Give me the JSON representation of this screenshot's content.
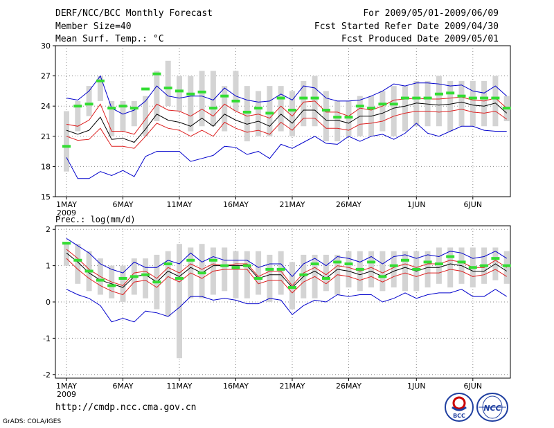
{
  "header": {
    "title": "DERF/NCC/BCC Monthly Forecast",
    "member_size": "Member Size=40",
    "variable": "Mean Surf. Temp.: °C",
    "for_range": "For 2009/05/01-2009/06/09",
    "fcst_started": "Fcst Started Refer Date 2009/04/30",
    "fcst_produced": "Fcst Produced Date 2009/05/01"
  },
  "precip_label": "Prec.: log(mm/d)",
  "footer": {
    "url": "http://cmdp.ncc.cma.gov.cn",
    "grads": "GrADS: COLA/IGES",
    "logo1": "BCC",
    "logo2": "NCC"
  },
  "colors": {
    "box": "#d4d4d4",
    "observed": "#33dd33",
    "mean": "#000000",
    "spread": "#dd2020",
    "envelope": "#0000cc",
    "grid": "#888888"
  },
  "chart_data": [
    {
      "type": "box-ensemble",
      "title": "Mean Surf. Temp.: °C",
      "x_ticks": [
        "1MAY",
        "6MAY",
        "11MAY",
        "16MAY",
        "21MAY",
        "26MAY",
        "1JUN",
        "6JUN"
      ],
      "x_tick_days": [
        1,
        6,
        11,
        16,
        21,
        26,
        32,
        37
      ],
      "year_label": "2009",
      "days": [
        1,
        2,
        3,
        4,
        5,
        6,
        7,
        8,
        9,
        10,
        11,
        12,
        13,
        14,
        15,
        16,
        17,
        18,
        19,
        20,
        21,
        22,
        23,
        24,
        25,
        26,
        27,
        28,
        29,
        30,
        31,
        32,
        33,
        34,
        35,
        36,
        37,
        38,
        39,
        40
      ],
      "ylim": [
        15,
        30
      ],
      "y_ticks": [
        15,
        18,
        21,
        24,
        27,
        30
      ],
      "box_low": [
        17.5,
        21.5,
        23.0,
        24.5,
        21.0,
        21.5,
        22.0,
        21.0,
        22.5,
        24.0,
        23.5,
        21.5,
        22.0,
        22.0,
        21.5,
        23.5,
        20.5,
        21.0,
        21.0,
        21.5,
        21.0,
        22.0,
        22.0,
        20.5,
        20.5,
        21.0,
        21.0,
        21.0,
        21.5,
        21.0,
        21.5,
        22.0,
        22.0,
        22.0,
        21.5,
        22.0,
        22.0,
        22.0,
        22.0,
        22.5
      ],
      "box_high": [
        23.5,
        24.5,
        26.0,
        27.0,
        24.5,
        24.5,
        24.5,
        25.0,
        27.5,
        28.5,
        27.0,
        27.0,
        27.5,
        27.5,
        26.0,
        27.5,
        26.0,
        25.5,
        26.0,
        26.0,
        25.5,
        26.5,
        27.0,
        25.5,
        24.5,
        24.5,
        25.0,
        25.0,
        25.5,
        26.0,
        26.0,
        26.5,
        26.5,
        27.0,
        26.5,
        26.5,
        26.5,
        26.5,
        27.0,
        25.0
      ],
      "observed": [
        20.0,
        24.0,
        24.2,
        26.5,
        23.8,
        24.0,
        23.8,
        25.7,
        27.2,
        25.8,
        25.5,
        25.2,
        25.4,
        23.8,
        25.0,
        24.5,
        23.4,
        23.8,
        23.3,
        24.8,
        23.6,
        24.8,
        24.8,
        23.6,
        22.9,
        22.9,
        24.0,
        23.8,
        24.2,
        24.2,
        24.8,
        24.8,
        24.8,
        25.2,
        25.3,
        25.0,
        24.8,
        24.8,
        24.8,
        23.8
      ],
      "series": [
        {
          "name": "max",
          "values": [
            24.8,
            24.6,
            25.5,
            27.0,
            23.8,
            23.2,
            23.6,
            24.5,
            26.0,
            25.0,
            24.8,
            25.0,
            25.0,
            24.6,
            25.8,
            25.0,
            24.6,
            24.4,
            24.5,
            25.2,
            24.6,
            26.0,
            25.8,
            24.8,
            24.5,
            24.5,
            24.6,
            25.0,
            25.5,
            26.2,
            26.0,
            26.3,
            26.3,
            26.2,
            26.0,
            26.1,
            25.5,
            25.3,
            26.0,
            25.0
          ]
        },
        {
          "name": "upper",
          "values": [
            22.2,
            22.0,
            22.6,
            24.2,
            21.5,
            21.5,
            21.2,
            22.7,
            24.2,
            23.6,
            23.5,
            23.0,
            23.7,
            23.0,
            24.2,
            23.5,
            23.0,
            23.2,
            22.8,
            24.0,
            23.0,
            24.4,
            24.5,
            23.4,
            23.4,
            23.0,
            23.8,
            23.6,
            24.0,
            24.6,
            24.7,
            24.8,
            24.7,
            24.7,
            24.8,
            24.9,
            24.6,
            24.5,
            24.8,
            23.8
          ]
        },
        {
          "name": "mean",
          "values": [
            21.6,
            21.2,
            21.6,
            22.9,
            20.7,
            20.8,
            20.4,
            21.7,
            23.2,
            22.6,
            22.4,
            22.0,
            22.8,
            22.0,
            23.2,
            22.6,
            22.2,
            22.5,
            22.0,
            23.2,
            22.3,
            23.6,
            23.6,
            22.6,
            22.6,
            22.3,
            23.0,
            23.0,
            23.3,
            23.8,
            24.0,
            24.3,
            24.2,
            24.1,
            24.2,
            24.4,
            24.1,
            24.0,
            24.3,
            23.3
          ]
        },
        {
          "name": "lower",
          "values": [
            21.0,
            20.6,
            20.7,
            21.8,
            20.0,
            20.0,
            19.8,
            21.0,
            22.3,
            21.8,
            21.6,
            21.0,
            21.6,
            21.0,
            22.4,
            21.8,
            21.4,
            21.6,
            21.2,
            22.4,
            21.6,
            22.8,
            22.8,
            21.8,
            21.8,
            21.6,
            22.2,
            22.3,
            22.5,
            23.0,
            23.3,
            23.5,
            23.5,
            23.4,
            23.5,
            23.7,
            23.4,
            23.3,
            23.5,
            22.7
          ]
        },
        {
          "name": "min",
          "values": [
            18.9,
            16.8,
            16.8,
            17.5,
            17.1,
            17.6,
            17.0,
            19.0,
            19.5,
            19.5,
            19.5,
            18.5,
            18.8,
            19.1,
            20.0,
            19.9,
            19.2,
            19.5,
            18.8,
            20.2,
            19.8,
            20.4,
            21.0,
            20.3,
            20.2,
            21.0,
            20.5,
            21.0,
            21.2,
            20.7,
            21.3,
            22.3,
            21.3,
            21.0,
            21.5,
            22.0,
            22.0,
            21.6,
            21.5,
            21.5
          ]
        }
      ]
    },
    {
      "type": "box-ensemble",
      "title": "Prec.: log(mm/d)",
      "x_ticks": [
        "1MAY",
        "6MAY",
        "11MAY",
        "16MAY",
        "21MAY",
        "26MAY",
        "1JUN",
        "6JUN"
      ],
      "x_tick_days": [
        1,
        6,
        11,
        16,
        21,
        26,
        32,
        37
      ],
      "year_label": "2009",
      "days": [
        1,
        2,
        3,
        4,
        5,
        6,
        7,
        8,
        9,
        10,
        11,
        12,
        13,
        14,
        15,
        16,
        17,
        18,
        19,
        20,
        21,
        22,
        23,
        24,
        25,
        26,
        27,
        28,
        29,
        30,
        31,
        32,
        33,
        34,
        35,
        36,
        37,
        38,
        39,
        40
      ],
      "ylim": [
        -2.1,
        2.1
      ],
      "y_ticks": [
        -2,
        -1,
        0,
        1,
        2
      ],
      "box_low": [
        1.0,
        0.5,
        0.3,
        0.2,
        0.1,
        0.0,
        0.2,
        0.1,
        -0.2,
        -0.4,
        -1.55,
        0.1,
        0.1,
        0.2,
        0.3,
        0.1,
        0.1,
        0.2,
        0.0,
        0.2,
        -0.2,
        0.1,
        0.1,
        0.3,
        0.2,
        0.4,
        0.3,
        0.4,
        0.3,
        0.4,
        0.3,
        0.3,
        0.4,
        0.5,
        0.4,
        0.5,
        0.4,
        0.5,
        0.6,
        0.5
      ],
      "box_high": [
        1.6,
        1.6,
        1.4,
        1.2,
        1.0,
        1.0,
        1.2,
        1.2,
        1.3,
        1.4,
        1.6,
        1.5,
        1.6,
        1.5,
        1.5,
        1.4,
        1.4,
        1.4,
        1.3,
        1.4,
        1.1,
        1.3,
        1.3,
        1.3,
        1.3,
        1.4,
        1.4,
        1.4,
        1.4,
        1.4,
        1.4,
        1.4,
        1.4,
        1.5,
        1.5,
        1.5,
        1.5,
        1.5,
        1.5,
        1.4
      ],
      "observed": [
        1.62,
        1.15,
        0.85,
        0.6,
        0.45,
        0.65,
        0.7,
        0.75,
        0.55,
        1.05,
        0.65,
        1.15,
        0.8,
        1.15,
        1.0,
        0.95,
        1.0,
        0.65,
        0.9,
        0.9,
        0.4,
        0.75,
        1.05,
        0.65,
        1.1,
        1.05,
        0.9,
        1.1,
        0.7,
        1.0,
        1.15,
        0.9,
        1.1,
        1.05,
        1.25,
        1.1,
        0.95,
        1.0,
        1.2,
        1.0
      ],
      "series": [
        {
          "name": "max",
          "values": [
            1.75,
            1.55,
            1.35,
            1.05,
            0.9,
            0.8,
            1.1,
            0.95,
            0.95,
            1.15,
            1.05,
            1.35,
            1.1,
            1.25,
            1.15,
            1.15,
            1.15,
            0.95,
            1.05,
            1.05,
            0.7,
            1.05,
            1.2,
            1.0,
            1.25,
            1.2,
            1.1,
            1.25,
            1.05,
            1.25,
            1.3,
            1.2,
            1.3,
            1.25,
            1.4,
            1.35,
            1.2,
            1.25,
            1.4,
            1.2
          ]
        },
        {
          "name": "upper",
          "values": [
            1.45,
            1.2,
            0.9,
            0.7,
            0.55,
            0.45,
            0.8,
            0.85,
            0.65,
            0.95,
            0.8,
            1.05,
            0.9,
            1.05,
            1.0,
            1.05,
            1.05,
            0.7,
            0.85,
            0.85,
            0.45,
            0.8,
            0.95,
            0.75,
            1.0,
            0.95,
            0.85,
            0.95,
            0.8,
            0.95,
            1.05,
            0.95,
            1.05,
            1.05,
            1.15,
            1.1,
            0.95,
            0.95,
            1.15,
            0.95
          ]
        },
        {
          "name": "mean",
          "values": [
            1.35,
            1.1,
            0.8,
            0.6,
            0.5,
            0.4,
            0.7,
            0.75,
            0.55,
            0.85,
            0.7,
            0.95,
            0.8,
            1.0,
            1.0,
            1.0,
            1.0,
            0.65,
            0.75,
            0.75,
            0.4,
            0.7,
            0.85,
            0.65,
            0.9,
            0.85,
            0.75,
            0.85,
            0.7,
            0.85,
            0.95,
            0.85,
            0.95,
            0.95,
            1.05,
            1.0,
            0.85,
            0.85,
            1.05,
            0.85
          ]
        },
        {
          "name": "lower",
          "values": [
            1.2,
            0.9,
            0.65,
            0.45,
            0.3,
            0.2,
            0.55,
            0.6,
            0.4,
            0.7,
            0.55,
            0.8,
            0.65,
            0.85,
            0.9,
            0.9,
            0.9,
            0.5,
            0.6,
            0.6,
            0.25,
            0.55,
            0.7,
            0.5,
            0.75,
            0.7,
            0.6,
            0.7,
            0.55,
            0.7,
            0.8,
            0.7,
            0.8,
            0.8,
            0.9,
            0.85,
            0.7,
            0.75,
            0.9,
            0.7
          ]
        },
        {
          "name": "min",
          "values": [
            0.35,
            0.2,
            0.1,
            -0.1,
            -0.55,
            -0.45,
            -0.55,
            -0.25,
            -0.3,
            -0.4,
            -0.15,
            0.15,
            0.15,
            0.05,
            0.1,
            0.05,
            -0.05,
            -0.05,
            0.1,
            0.05,
            -0.35,
            -0.1,
            0.05,
            0.0,
            0.2,
            0.15,
            0.2,
            0.2,
            0.0,
            0.1,
            0.25,
            0.1,
            0.2,
            0.25,
            0.25,
            0.35,
            0.15,
            0.15,
            0.35,
            0.15
          ]
        }
      ]
    }
  ]
}
